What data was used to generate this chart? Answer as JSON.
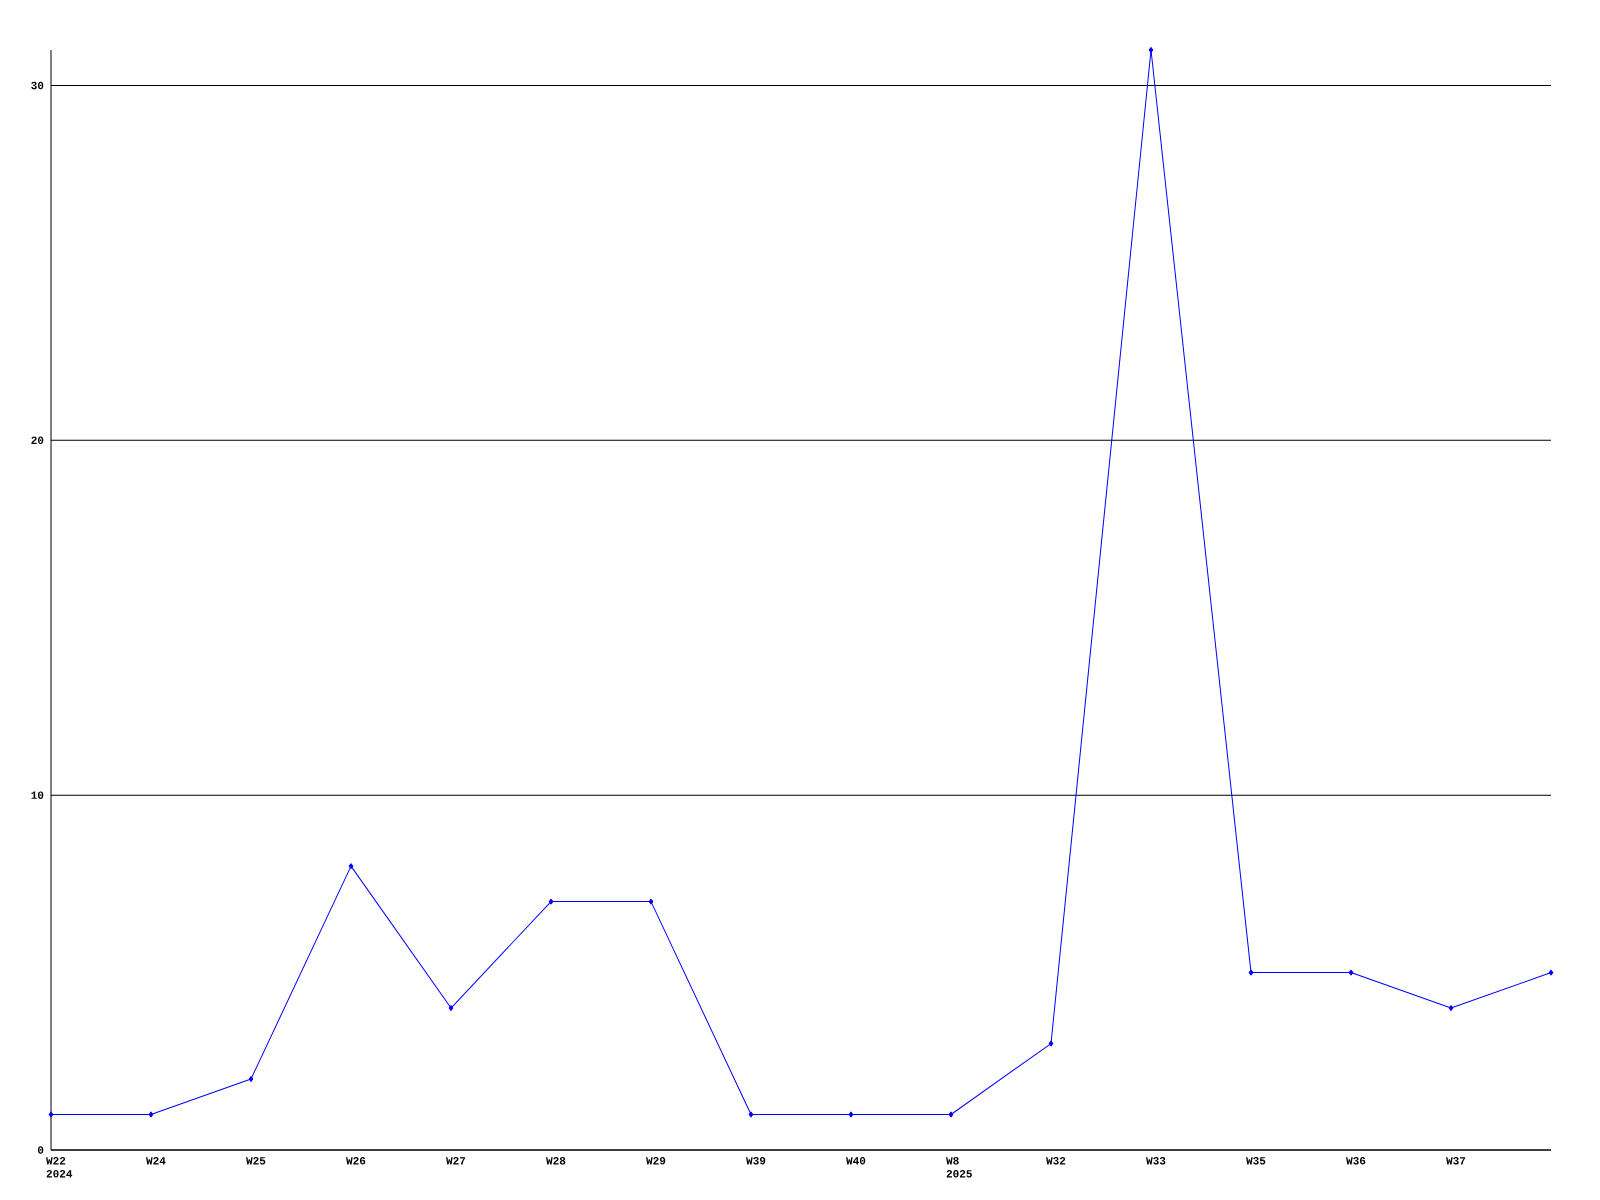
{
  "chart_data": {
    "type": "line",
    "categories": [
      "W22 2024",
      "W24",
      "W25",
      "W26",
      "W27",
      "W28",
      "W29",
      "W39",
      "W40",
      "W8 2025",
      "W32",
      "W33",
      "W35",
      "W36",
      "W37",
      null
    ],
    "series": [
      {
        "color": "#0000ff",
        "values": [
          1,
          1,
          2,
          8,
          4,
          7,
          7,
          1,
          1,
          1,
          3,
          31,
          5,
          5,
          4,
          5
        ]
      }
    ],
    "ylim": [
      0,
      31
    ],
    "yticks": [
      0,
      10,
      20,
      30
    ],
    "grid": "y",
    "marker": "diamond",
    "line_style": "solid"
  }
}
